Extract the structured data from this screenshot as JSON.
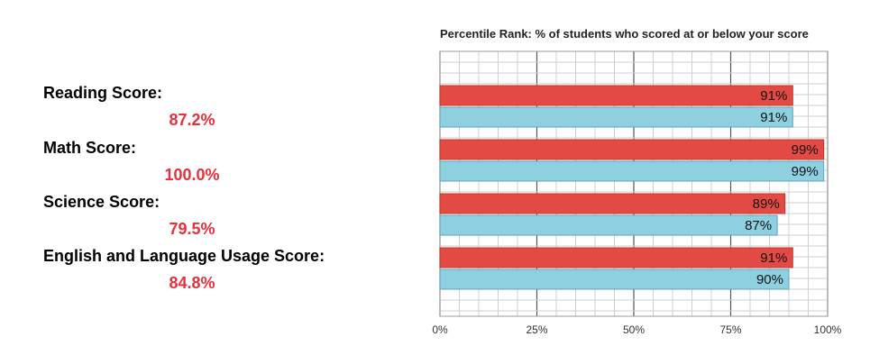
{
  "scores": [
    {
      "label": "Reading Score:",
      "value": "87.2%"
    },
    {
      "label": "Math Score:",
      "value": "100.0%"
    },
    {
      "label": "Science Score:",
      "value": "79.5%"
    },
    {
      "label": "English and Language Usage Score:",
      "value": "84.8%"
    }
  ],
  "colors": {
    "score_value": "#e8303a",
    "series_a": "#e34a43",
    "series_b": "#8ecfe0",
    "grid_minor": "#cfcfcf",
    "grid_major": "#555555"
  },
  "chart_data": {
    "type": "bar",
    "orientation": "horizontal",
    "title": "Percentile Rank: % of students who scored at or below your score",
    "xlabel": "",
    "ylabel": "",
    "xlim": [
      0,
      100
    ],
    "x_ticks": [
      "0%",
      "25%",
      "50%",
      "75%",
      "100%"
    ],
    "grid": true,
    "categories": [
      "Reading",
      "Math",
      "Science",
      "English and Language Usage"
    ],
    "series": [
      {
        "values": [
          91,
          99,
          89,
          91
        ],
        "labels": [
          "91%",
          "99%",
          "89%",
          "91%"
        ]
      },
      {
        "values": [
          91,
          99,
          87,
          90
        ],
        "labels": [
          "91%",
          "99%",
          "87%",
          "90%"
        ]
      }
    ]
  }
}
